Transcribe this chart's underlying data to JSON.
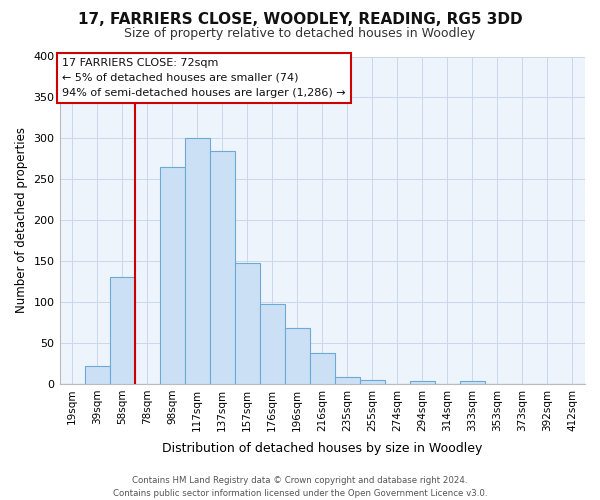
{
  "title": "17, FARRIERS CLOSE, WOODLEY, READING, RG5 3DD",
  "subtitle": "Size of property relative to detached houses in Woodley",
  "xlabel": "Distribution of detached houses by size in Woodley",
  "ylabel": "Number of detached properties",
  "bar_labels": [
    "19sqm",
    "39sqm",
    "58sqm",
    "78sqm",
    "98sqm",
    "117sqm",
    "137sqm",
    "157sqm",
    "176sqm",
    "196sqm",
    "216sqm",
    "235sqm",
    "255sqm",
    "274sqm",
    "294sqm",
    "314sqm",
    "333sqm",
    "353sqm",
    "373sqm",
    "392sqm",
    "412sqm"
  ],
  "bar_values": [
    0,
    22,
    130,
    0,
    265,
    300,
    285,
    148,
    98,
    68,
    38,
    9,
    5,
    0,
    3,
    0,
    3,
    0,
    0,
    0,
    0
  ],
  "bar_color": "#cce0f5",
  "bar_edge_color": "#6aaad4",
  "ylim": [
    0,
    400
  ],
  "yticks": [
    0,
    50,
    100,
    150,
    200,
    250,
    300,
    350,
    400
  ],
  "vline_color": "#cc0000",
  "annotation_title": "17 FARRIERS CLOSE: 72sqm",
  "annotation_line1": "← 5% of detached houses are smaller (74)",
  "annotation_line2": "94% of semi-detached houses are larger (1,286) →",
  "annotation_box_color": "#ffffff",
  "annotation_box_edge": "#cc0000",
  "footer1": "Contains HM Land Registry data © Crown copyright and database right 2024.",
  "footer2": "Contains public sector information licensed under the Open Government Licence v3.0.",
  "bg_color": "#ffffff",
  "grid_color": "#c8d8ec",
  "plot_bg_color": "#eef4fb"
}
